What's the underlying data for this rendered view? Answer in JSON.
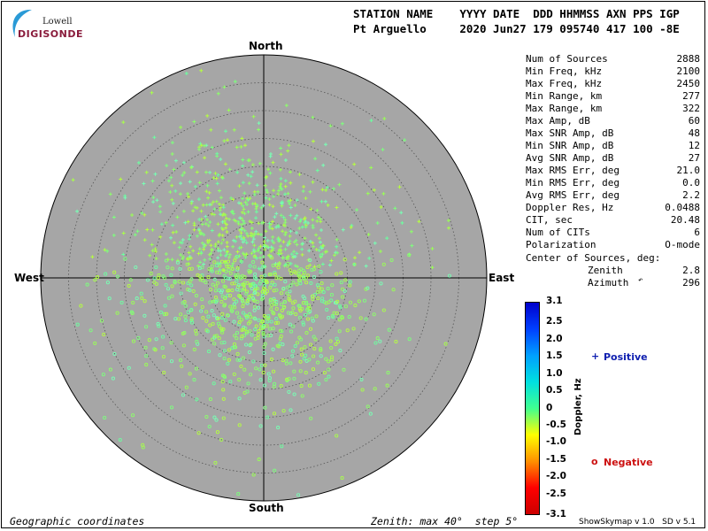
{
  "logo": {
    "line1": "Lowell",
    "line2": "DIGISONDE"
  },
  "header": {
    "row1": "STATION NAME    YYYY DATE  DDD HHMMSS AXN PPS IGP",
    "row2": "Pt Arguello     2020 Jun27 179 095740 417 100 -8E"
  },
  "stats": [
    {
      "label": "Num of Sources",
      "value": "2888"
    },
    {
      "label": "Min Freq, kHz",
      "value": "2100"
    },
    {
      "label": "Max Freq, kHz",
      "value": "2450"
    },
    {
      "label": "Min Range, km",
      "value": "277"
    },
    {
      "label": "Max Range, km",
      "value": "322"
    },
    {
      "label": "Max Amp, dB",
      "value": "60"
    },
    {
      "label": "Max SNR Amp, dB",
      "value": "48"
    },
    {
      "label": "Min SNR Amp, dB",
      "value": "12"
    },
    {
      "label": "Avg SNR Amp, dB",
      "value": "27"
    },
    {
      "label": "Max RMS Err, deg",
      "value": "21.0"
    },
    {
      "label": "Min RMS Err, deg",
      "value": "0.0"
    },
    {
      "label": "Avg RMS Err, deg",
      "value": "2.2"
    },
    {
      "label": "Doppler Res, Hz",
      "value": "0.0488"
    },
    {
      "label": "CIT, sec",
      "value": "20.48"
    },
    {
      "label": "Num of CITs",
      "value": "6"
    },
    {
      "label": "Polarization",
      "value": "O-mode"
    }
  ],
  "center": {
    "title": "Center of Sources, deg:",
    "zenith_label": "Zenith",
    "zenith_value": "2.8",
    "azimuth_label": "Azimuth",
    "azimuth_value": "296"
  },
  "legend": {
    "positive_symbol": "+",
    "positive": "Positive",
    "negative_symbol": "o",
    "negative": "Negative"
  },
  "footer": {
    "left": "Geographic coordinates",
    "mid": "Zenith: max 40°  step 5°",
    "right": "ShowSkymap v 1.0   SD v 5.1"
  },
  "chart_data": {
    "type": "scatter",
    "projection": "polar-skymap",
    "directions": {
      "north": "North",
      "south": "South",
      "east": "East",
      "west": "West"
    },
    "zenith_max_deg": 40,
    "zenith_step_deg": 5,
    "num_sources": 2888,
    "center_of_sources": {
      "zenith_deg": 2.8,
      "azimuth_deg": 296
    },
    "approx_spread_zenith_deg": 10,
    "point_markers": {
      "positive_doppler": "+",
      "negative_doppler": "o"
    },
    "colorbar": {
      "label": "Doppler, Hz",
      "min": -3.1,
      "max": 3.1,
      "ticks": [
        "3.1",
        "2.5",
        "2.0",
        "1.5",
        "1.0",
        "0.5",
        "0",
        "-0.5",
        "-1.0",
        "-1.5",
        "-2.0",
        "-2.5",
        "-3.1"
      ],
      "colors": [
        "#0000cc",
        "#0040ff",
        "#00a0ff",
        "#00e0e0",
        "#40ff90",
        "#ffff00",
        "#ff9000",
        "#ff0000",
        "#cc0000"
      ]
    },
    "colors": {
      "plot_bg": "#a6a6a6",
      "point_color": "#80ff80",
      "positive_legend": "#1020b0",
      "negative_legend": "#cc1010"
    }
  }
}
